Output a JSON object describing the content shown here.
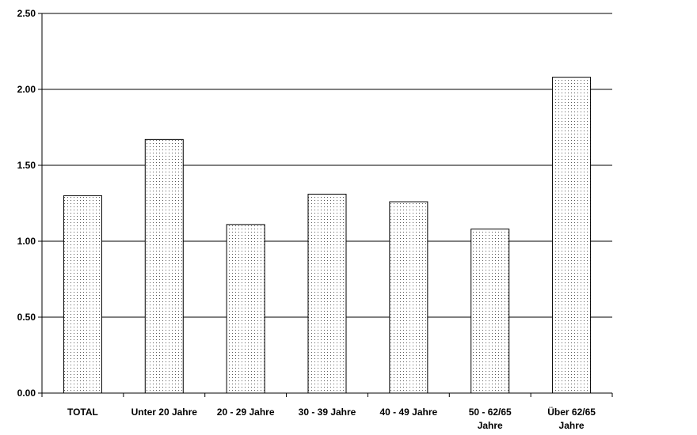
{
  "chart_data": {
    "type": "bar",
    "categories": [
      "TOTAL",
      "Unter 20 Jahre",
      "20 - 29 Jahre",
      "30 - 39 Jahre",
      "40 - 49 Jahre",
      "50 - 62/65 Jahre",
      "Über 62/65 Jahre"
    ],
    "category_lines": [
      [
        "TOTAL"
      ],
      [
        "Unter 20 Jahre"
      ],
      [
        "20 - 29 Jahre"
      ],
      [
        "30 - 39 Jahre"
      ],
      [
        "40 - 49 Jahre"
      ],
      [
        "50 - 62/65",
        "Jahre"
      ],
      [
        "Über 62/65",
        "Jahre"
      ]
    ],
    "values": [
      1.3,
      1.67,
      1.11,
      1.31,
      1.26,
      1.08,
      2.08
    ],
    "ylim": [
      0,
      2.5
    ],
    "yticks": [
      "0.00",
      "0.50",
      "1.00",
      "1.50",
      "2.00",
      "2.50"
    ],
    "grid": true,
    "bar_fill": "#ffffff",
    "bar_pattern": "dotted",
    "bar_stroke": "#000000",
    "title": "",
    "xlabel": "",
    "ylabel": ""
  }
}
